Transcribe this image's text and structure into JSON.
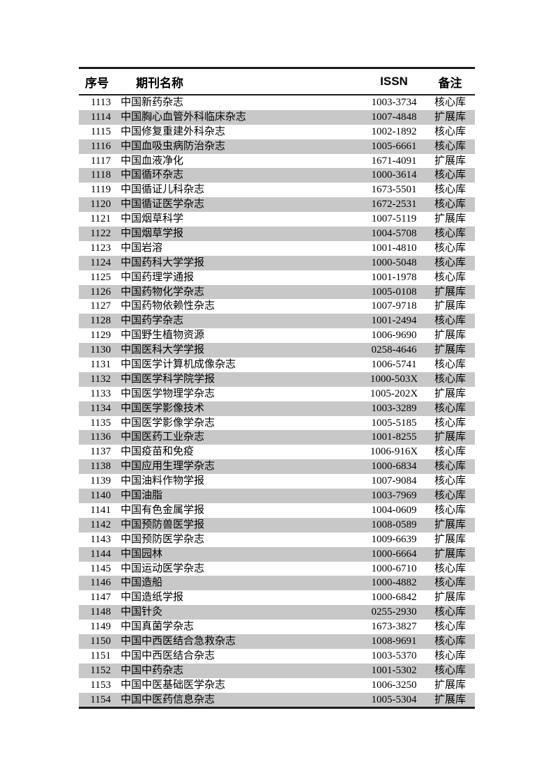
{
  "table": {
    "columns": [
      {
        "key": "index",
        "label": "序号"
      },
      {
        "key": "name",
        "label": "期刊名称"
      },
      {
        "key": "issn",
        "label": "ISSN"
      },
      {
        "key": "note",
        "label": "备注"
      }
    ],
    "colors": {
      "row_shade": "#c8c8c8",
      "border": "#1c1c1c",
      "text": "#000000"
    },
    "note_values": [
      "核心库",
      "扩展库"
    ],
    "rows": [
      {
        "index": "1113",
        "name": "中国新药杂志",
        "issn": "1003-3734",
        "note": "核心库"
      },
      {
        "index": "1114",
        "name": "中国胸心血管外科临床杂志",
        "issn": "1007-4848",
        "note": "扩展库"
      },
      {
        "index": "1115",
        "name": "中国修复重建外科杂志",
        "issn": "1002-1892",
        "note": "核心库"
      },
      {
        "index": "1116",
        "name": "中国血吸虫病防治杂志",
        "issn": "1005-6661",
        "note": "核心库"
      },
      {
        "index": "1117",
        "name": "中国血液净化",
        "issn": "1671-4091",
        "note": "扩展库"
      },
      {
        "index": "1118",
        "name": "中国循环杂志",
        "issn": "1000-3614",
        "note": "核心库"
      },
      {
        "index": "1119",
        "name": "中国循证儿科杂志",
        "issn": "1673-5501",
        "note": "核心库"
      },
      {
        "index": "1120",
        "name": "中国循证医学杂志",
        "issn": "1672-2531",
        "note": "核心库"
      },
      {
        "index": "1121",
        "name": "中国烟草科学",
        "issn": "1007-5119",
        "note": "扩展库"
      },
      {
        "index": "1122",
        "name": "中国烟草学报",
        "issn": "1004-5708",
        "note": "核心库"
      },
      {
        "index": "1123",
        "name": "中国岩溶",
        "issn": "1001-4810",
        "note": "核心库"
      },
      {
        "index": "1124",
        "name": "中国药科大学学报",
        "issn": "1000-5048",
        "note": "核心库"
      },
      {
        "index": "1125",
        "name": "中国药理学通报",
        "issn": "1001-1978",
        "note": "核心库"
      },
      {
        "index": "1126",
        "name": "中国药物化学杂志",
        "issn": "1005-0108",
        "note": "扩展库"
      },
      {
        "index": "1127",
        "name": "中国药物依赖性杂志",
        "issn": "1007-9718",
        "note": "扩展库"
      },
      {
        "index": "1128",
        "name": "中国药学杂志",
        "issn": "1001-2494",
        "note": "核心库"
      },
      {
        "index": "1129",
        "name": "中国野生植物资源",
        "issn": "1006-9690",
        "note": "扩展库"
      },
      {
        "index": "1130",
        "name": "中国医科大学学报",
        "issn": "0258-4646",
        "note": "扩展库"
      },
      {
        "index": "1131",
        "name": "中国医学计算机成像杂志",
        "issn": "1006-5741",
        "note": "核心库"
      },
      {
        "index": "1132",
        "name": "中国医学科学院学报",
        "issn": "1000-503X",
        "note": "核心库"
      },
      {
        "index": "1133",
        "name": "中国医学物理学杂志",
        "issn": "1005-202X",
        "note": "扩展库"
      },
      {
        "index": "1134",
        "name": "中国医学影像技术",
        "issn": "1003-3289",
        "note": "核心库"
      },
      {
        "index": "1135",
        "name": "中国医学影像学杂志",
        "issn": "1005-5185",
        "note": "核心库"
      },
      {
        "index": "1136",
        "name": "中国医药工业杂志",
        "issn": "1001-8255",
        "note": "扩展库"
      },
      {
        "index": "1137",
        "name": "中国疫苗和免疫",
        "issn": "1006-916X",
        "note": "核心库"
      },
      {
        "index": "1138",
        "name": "中国应用生理学杂志",
        "issn": "1000-6834",
        "note": "核心库"
      },
      {
        "index": "1139",
        "name": "中国油料作物学报",
        "issn": "1007-9084",
        "note": "核心库"
      },
      {
        "index": "1140",
        "name": "中国油脂",
        "issn": "1003-7969",
        "note": "核心库"
      },
      {
        "index": "1141",
        "name": "中国有色金属学报",
        "issn": "1004-0609",
        "note": "核心库"
      },
      {
        "index": "1142",
        "name": "中国预防兽医学报",
        "issn": "1008-0589",
        "note": "扩展库"
      },
      {
        "index": "1143",
        "name": "中国预防医学杂志",
        "issn": "1009-6639",
        "note": "扩展库"
      },
      {
        "index": "1144",
        "name": "中国园林",
        "issn": "1000-6664",
        "note": "扩展库"
      },
      {
        "index": "1145",
        "name": "中国运动医学杂志",
        "issn": "1000-6710",
        "note": "核心库"
      },
      {
        "index": "1146",
        "name": "中国造船",
        "issn": "1000-4882",
        "note": "核心库"
      },
      {
        "index": "1147",
        "name": "中国造纸学报",
        "issn": "1000-6842",
        "note": "扩展库"
      },
      {
        "index": "1148",
        "name": "中国针灸",
        "issn": "0255-2930",
        "note": "核心库"
      },
      {
        "index": "1149",
        "name": "中国真菌学杂志",
        "issn": "1673-3827",
        "note": "核心库"
      },
      {
        "index": "1150",
        "name": "中国中西医结合急救杂志",
        "issn": "1008-9691",
        "note": "核心库"
      },
      {
        "index": "1151",
        "name": "中国中西医结合杂志",
        "issn": "1003-5370",
        "note": "核心库"
      },
      {
        "index": "1152",
        "name": "中国中药杂志",
        "issn": "1001-5302",
        "note": "核心库"
      },
      {
        "index": "1153",
        "name": "中国中医基础医学杂志",
        "issn": "1006-3250",
        "note": "扩展库"
      },
      {
        "index": "1154",
        "name": "中国中医药信息杂志",
        "issn": "1005-5304",
        "note": "扩展库"
      }
    ]
  }
}
